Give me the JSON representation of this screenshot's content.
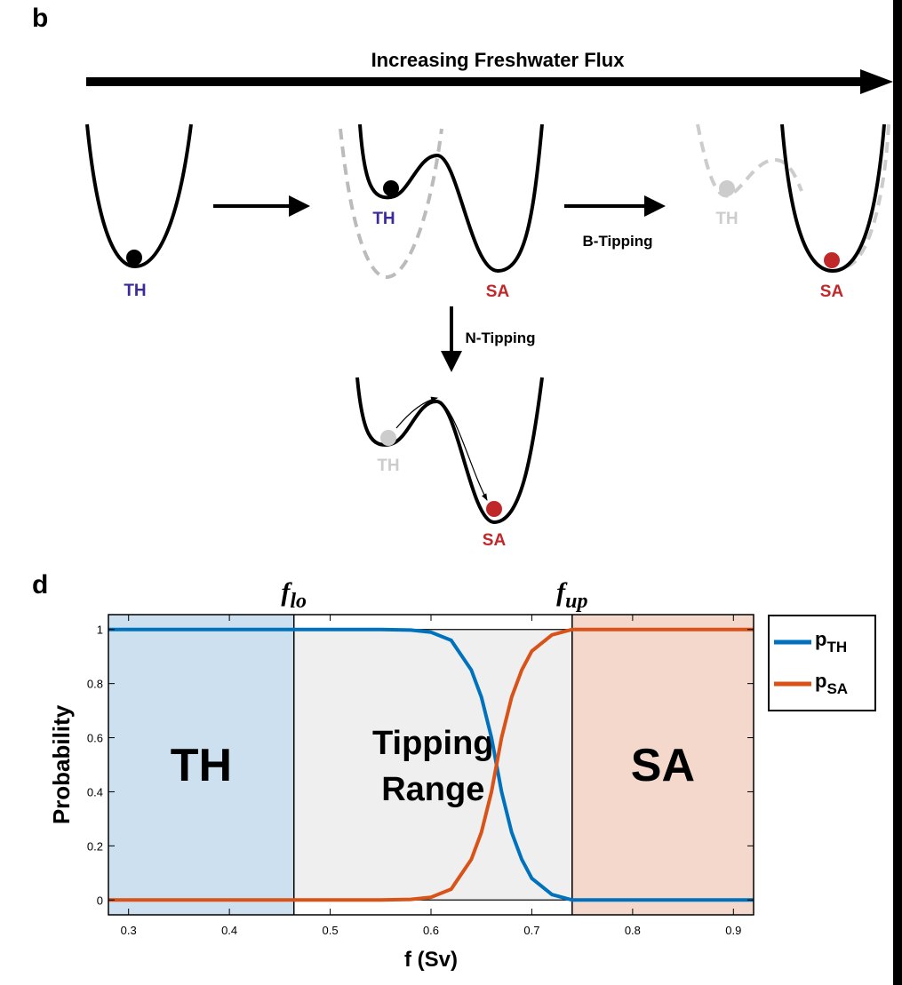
{
  "panel_b": {
    "label": "b",
    "title": "Increasing Freshwater Flux",
    "well1": {
      "state": "TH"
    },
    "well2": {
      "state_left": "TH",
      "state_right": "SA"
    },
    "b_tipping": "B-Tipping",
    "well3": {
      "state_left": "TH",
      "state_right": "SA"
    },
    "n_tipping": "N-Tipping",
    "well4": {
      "state_left": "TH",
      "state_right": "SA"
    }
  },
  "chart_data": {
    "type": "line",
    "panel_label": "d",
    "x_label": "f (Sv)",
    "y_label": "Probability",
    "x": [
      0.28,
      0.55,
      0.58,
      0.6,
      0.62,
      0.64,
      0.65,
      0.66,
      0.665,
      0.67,
      0.68,
      0.69,
      0.7,
      0.72,
      0.74,
      0.92
    ],
    "series": [
      {
        "name": "p",
        "sub": "TH",
        "color": "#0072bd",
        "values": [
          1,
          1,
          0.998,
          0.99,
          0.96,
          0.85,
          0.75,
          0.6,
          0.5,
          0.4,
          0.25,
          0.15,
          0.08,
          0.02,
          0,
          0
        ]
      },
      {
        "name": "p",
        "sub": "SA",
        "color": "#d95319",
        "values": [
          0,
          0,
          0.002,
          0.01,
          0.04,
          0.15,
          0.25,
          0.4,
          0.5,
          0.6,
          0.75,
          0.85,
          0.92,
          0.98,
          1,
          1
        ]
      }
    ],
    "thresholds": [
      {
        "value": 0.464,
        "label": "f",
        "sub": "lo"
      },
      {
        "value": 0.74,
        "label": "f",
        "sub": "up"
      }
    ],
    "regions": [
      {
        "label_lines": [
          "TH"
        ],
        "color": "#cce0ef"
      },
      {
        "label_lines": [
          "Tipping",
          "Range"
        ],
        "color": "#efefef"
      },
      {
        "label_lines": [
          "SA"
        ],
        "color": "#f5d8cc"
      }
    ],
    "xlim": [
      0.28,
      0.92
    ],
    "ylim": [
      -0.055,
      1.055
    ],
    "xticks": [
      0.3,
      0.4,
      0.5,
      0.6,
      0.7,
      0.8,
      0.9
    ],
    "yticks": [
      0,
      0.2,
      0.4,
      0.6,
      0.8,
      1
    ],
    "legend": "outside-right"
  }
}
